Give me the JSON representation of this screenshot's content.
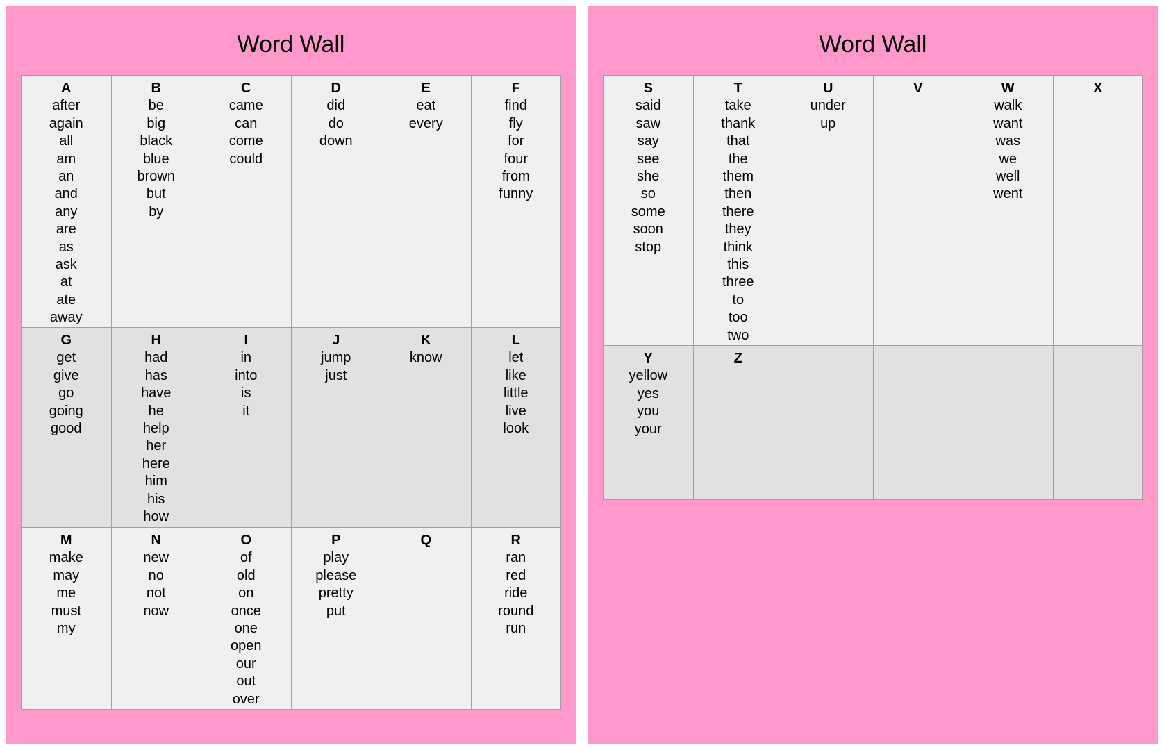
{
  "pages": [
    {
      "title": "Word Wall",
      "rows": [
        {
          "height": 363,
          "shade": "light",
          "cells": [
            {
              "letter": "A",
              "words": [
                "after",
                "again",
                "all",
                "am",
                "an",
                "and",
                "any",
                "are",
                "as",
                "ask",
                "at",
                "ate",
                "away"
              ]
            },
            {
              "letter": "B",
              "words": [
                "be",
                "big",
                "black",
                "blue",
                "brown",
                "but",
                "by"
              ]
            },
            {
              "letter": "C",
              "words": [
                "came",
                "can",
                "come",
                "could"
              ]
            },
            {
              "letter": "D",
              "words": [
                "did",
                "do",
                "down"
              ]
            },
            {
              "letter": "E",
              "words": [
                "eat",
                "every"
              ]
            },
            {
              "letter": "F",
              "words": [
                "find",
                "fly",
                "for",
                "four",
                "from",
                "funny"
              ]
            }
          ]
        },
        {
          "height": 288,
          "shade": "dark",
          "cells": [
            {
              "letter": "G",
              "words": [
                "get",
                "give",
                "go",
                "going",
                "good"
              ]
            },
            {
              "letter": "H",
              "words": [
                "had",
                "has",
                "have",
                "he",
                "help",
                "her",
                "here",
                "him",
                "his",
                "how"
              ]
            },
            {
              "letter": "I",
              "words": [
                "in",
                "into",
                "is",
                "it"
              ]
            },
            {
              "letter": "J",
              "words": [
                "jump",
                "just"
              ]
            },
            {
              "letter": "K",
              "words": [
                "know"
              ]
            },
            {
              "letter": "L",
              "words": [
                "let",
                "like",
                "little",
                "live",
                "look"
              ]
            }
          ]
        },
        {
          "height": 262,
          "shade": "light",
          "cells": [
            {
              "letter": "M",
              "words": [
                "make",
                "may",
                "me",
                "must",
                "my"
              ]
            },
            {
              "letter": "N",
              "words": [
                "new",
                "no",
                "not",
                "now"
              ]
            },
            {
              "letter": "O",
              "words": [
                "of",
                "old",
                "on",
                "once",
                "one",
                "open",
                "our",
                "out",
                "over"
              ]
            },
            {
              "letter": "P",
              "words": [
                "play",
                "please",
                "pretty",
                "put"
              ]
            },
            {
              "letter": "Q",
              "words": []
            },
            {
              "letter": "R",
              "words": [
                "ran",
                "red",
                "ride",
                "round",
                "run"
              ]
            }
          ]
        }
      ]
    },
    {
      "title": "Word Wall",
      "rows": [
        {
          "height": 389,
          "shade": "light",
          "cells": [
            {
              "letter": "S",
              "words": [
                "said",
                "saw",
                "say",
                "see",
                "she",
                "so",
                "some",
                "soon",
                "stop"
              ]
            },
            {
              "letter": "T",
              "words": [
                "take",
                "thank",
                "that",
                "the",
                "them",
                "then",
                "there",
                "they",
                "think",
                "this",
                "three",
                "to",
                "too",
                "two"
              ]
            },
            {
              "letter": "U",
              "words": [
                "under",
                "up"
              ]
            },
            {
              "letter": "V",
              "words": []
            },
            {
              "letter": "W",
              "words": [
                "walk",
                "want",
                "was",
                "we",
                "well",
                "went"
              ]
            },
            {
              "letter": "X",
              "words": []
            }
          ]
        },
        {
          "height": 222,
          "shade": "dark",
          "cells": [
            {
              "letter": "Y",
              "words": [
                "yellow",
                "yes",
                "you",
                "your"
              ]
            },
            {
              "letter": "Z",
              "words": []
            },
            {
              "letter": "",
              "words": []
            },
            {
              "letter": "",
              "words": []
            },
            {
              "letter": "",
              "words": []
            },
            {
              "letter": "",
              "words": []
            }
          ]
        }
      ]
    }
  ]
}
